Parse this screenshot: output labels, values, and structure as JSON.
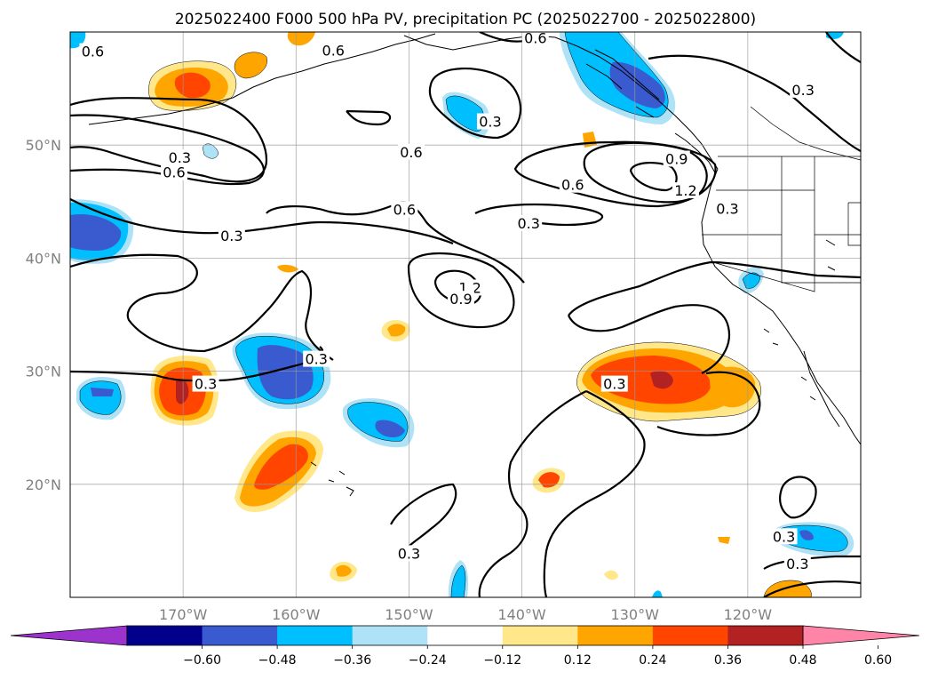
{
  "title": "2025022400 F000 500 hPa PV, precipitation PC (2025022700 - 2025022800)",
  "map": {
    "lat_labels": [
      "50°N",
      "40°N",
      "30°N",
      "20°N"
    ],
    "lon_labels": [
      "170°W",
      "160°W",
      "150°W",
      "140°W",
      "130°W",
      "120°W"
    ],
    "contour_labels": [
      {
        "text": "0.6",
        "lon": -178,
        "lat": 58.3
      },
      {
        "text": "0.6",
        "lon": -138.8,
        "lat": 59.5
      },
      {
        "text": "0.6",
        "lon": -156.7,
        "lat": 58.4
      },
      {
        "text": "0.3",
        "lon": -142.8,
        "lat": 52.1
      },
      {
        "text": "0.6",
        "lon": -149.8,
        "lat": 49.4
      },
      {
        "text": "0.3",
        "lon": -115.1,
        "lat": 54.9
      },
      {
        "text": "0.3",
        "lon": -170.3,
        "lat": 48.9
      },
      {
        "text": "0.6",
        "lon": -170.8,
        "lat": 47.6
      },
      {
        "text": "0.9",
        "lon": -126.3,
        "lat": 48.8
      },
      {
        "text": "0.6",
        "lon": -135.5,
        "lat": 46.5
      },
      {
        "text": "1.2",
        "lon": -125.5,
        "lat": 46.0
      },
      {
        "text": "0.6",
        "lon": -150.4,
        "lat": 44.3
      },
      {
        "text": "0.3",
        "lon": -121.8,
        "lat": 44.4
      },
      {
        "text": "0.3",
        "lon": -139.4,
        "lat": 43.1
      },
      {
        "text": "0.3",
        "lon": -165.7,
        "lat": 42.0
      },
      {
        "text": "1.2",
        "lon": -144.6,
        "lat": 37.4
      },
      {
        "text": "0.9",
        "lon": -145.4,
        "lat": 36.4
      },
      {
        "text": "0.3",
        "lon": -158.2,
        "lat": 31.1
      },
      {
        "text": "0.3",
        "lon": -168.0,
        "lat": 28.9
      },
      {
        "text": "0.3",
        "lon": -131.8,
        "lat": 28.9
      },
      {
        "text": "0.3",
        "lon": -150.0,
        "lat": 13.9
      },
      {
        "text": "0.3",
        "lon": -116.8,
        "lat": 15.4
      },
      {
        "text": "0.3",
        "lon": -115.6,
        "lat": 13.0
      }
    ]
  },
  "colorbar": {
    "tick_labels": [
      "−0.60",
      "−0.48",
      "−0.36",
      "−0.24",
      "−0.12",
      "0.12",
      "0.24",
      "0.36",
      "0.48",
      "0.60"
    ],
    "colors": [
      "#9c33cc",
      "#00008b",
      "#3a5bcf",
      "#00bfff",
      "#ade2f7",
      "#ffffff",
      "#ffe78a",
      "#ffa500",
      "#ff4500",
      "#b22222",
      "#ff85a8"
    ]
  }
}
